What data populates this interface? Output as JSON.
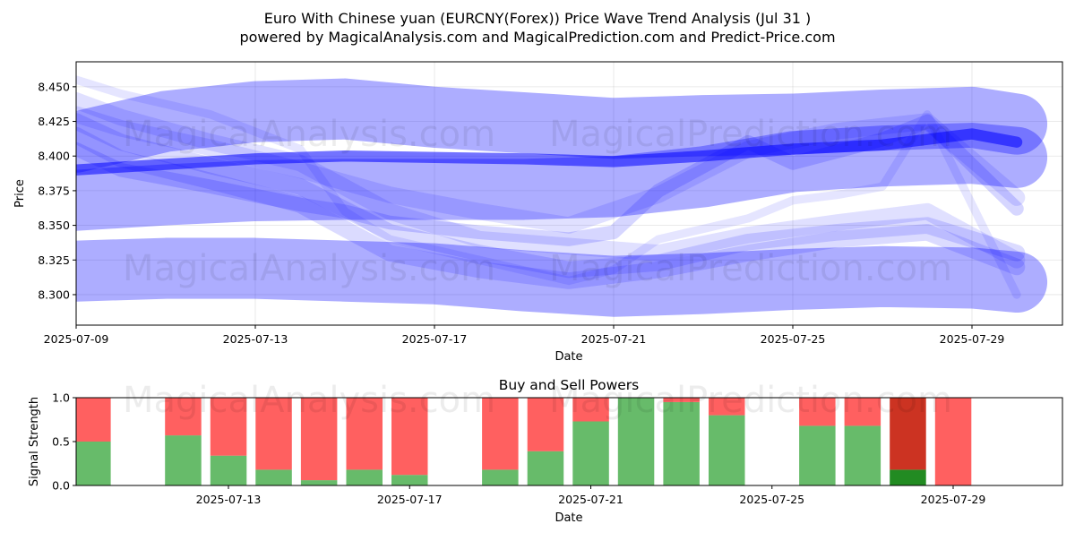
{
  "figure": {
    "title_line1": "Euro With Chinese yuan (EURCNY(Forex)) Price Wave Trend Analysis (Jul 31 )",
    "title_line2": "powered by MagicalAnalysis.com and MagicalPrediction.com and Predict-Price.com",
    "watermark_left": "MagicalAnalysis.com",
    "watermark_right": "MagicalPrediction.com"
  },
  "colors": {
    "band": "#0000ff",
    "buy": "#4caf50",
    "sell": "#ff4444",
    "buy_dark": "#228b22",
    "sell_dark": "#cc3322"
  },
  "chart_data": [
    {
      "type": "area",
      "title": "",
      "xlabel": "Date",
      "ylabel": "Price",
      "x_range": [
        "2025-07-09",
        "2025-07-31"
      ],
      "ylim": [
        8.278,
        8.468
      ],
      "x_ticks": [
        "2025-07-09",
        "2025-07-13",
        "2025-07-17",
        "2025-07-21",
        "2025-07-25",
        "2025-07-29"
      ],
      "y_ticks": [
        8.3,
        8.325,
        8.35,
        8.375,
        8.4,
        8.425,
        8.45
      ],
      "grid": true,
      "series": [
        {
          "x": [
            "2025-07-09",
            "2025-07-11",
            "2025-07-13",
            "2025-07-15",
            "2025-07-17",
            "2025-07-19",
            "2025-07-21",
            "2025-07-23",
            "2025-07-25",
            "2025-07-27",
            "2025-07-29",
            "2025-07-30"
          ],
          "y": [
            8.41,
            8.425,
            8.432,
            8.434,
            8.428,
            8.424,
            8.42,
            8.422,
            8.423,
            8.426,
            8.428,
            8.423
          ],
          "width": 8.044
        },
        {
          "x": [
            "2025-07-09",
            "2025-07-11",
            "2025-07-13",
            "2025-07-15",
            "2025-07-17",
            "2025-07-19",
            "2025-07-21",
            "2025-07-23",
            "2025-07-25",
            "2025-07-27",
            "2025-07-29",
            "2025-07-30"
          ],
          "y": [
            8.368,
            8.372,
            8.375,
            8.376,
            8.376,
            8.376,
            8.378,
            8.385,
            8.396,
            8.4,
            8.402,
            8.399
          ],
          "width": 8.044
        },
        {
          "x": [
            "2025-07-09",
            "2025-07-11",
            "2025-07-13",
            "2025-07-15",
            "2025-07-17",
            "2025-07-19",
            "2025-07-21",
            "2025-07-23",
            "2025-07-25",
            "2025-07-27",
            "2025-07-29",
            "2025-07-30"
          ],
          "y": [
            8.317,
            8.319,
            8.319,
            8.317,
            8.315,
            8.31,
            8.306,
            8.308,
            8.311,
            8.313,
            8.312,
            8.309
          ],
          "width": 8.044
        },
        {
          "x": [
            "2025-07-09",
            "2025-07-11",
            "2025-07-13",
            "2025-07-15",
            "2025-07-17",
            "2025-07-19",
            "2025-07-21",
            "2025-07-23",
            "2025-07-25",
            "2025-07-27",
            "2025-07-29",
            "2025-07-30"
          ],
          "y": [
            8.39,
            8.394,
            8.398,
            8.4,
            8.399,
            8.398,
            8.396,
            8.4,
            8.405,
            8.408,
            8.416,
            8.41
          ],
          "width": 8.008
        },
        {
          "x": [
            "2025-07-09",
            "2025-07-10",
            "2025-07-12",
            "2025-07-14",
            "2025-07-16",
            "2025-07-18",
            "2025-07-20",
            "2025-07-22",
            "2025-07-24",
            "2025-07-26",
            "2025-07-28",
            "2025-07-30"
          ],
          "y": [
            8.43,
            8.42,
            8.406,
            8.39,
            8.372,
            8.36,
            8.35,
            8.372,
            8.405,
            8.418,
            8.425,
            8.37
          ],
          "width": 8.012
        },
        {
          "x": [
            "2025-07-09",
            "2025-07-10",
            "2025-07-12",
            "2025-07-14",
            "2025-07-16",
            "2025-07-18",
            "2025-07-20",
            "2025-07-22",
            "2025-07-24",
            "2025-07-26",
            "2025-07-28",
            "2025-07-30"
          ],
          "y": [
            8.44,
            8.428,
            8.41,
            8.395,
            8.36,
            8.34,
            8.335,
            8.33,
            8.343,
            8.352,
            8.36,
            8.325
          ],
          "width": 8.012
        },
        {
          "x": [
            "2025-07-09",
            "2025-07-10",
            "2025-07-12",
            "2025-07-14",
            "2025-07-16",
            "2025-07-18",
            "2025-07-20",
            "2025-07-22",
            "2025-07-24",
            "2025-07-26",
            "2025-07-28",
            "2025-07-30"
          ],
          "y": [
            8.425,
            8.41,
            8.393,
            8.378,
            8.345,
            8.33,
            8.318,
            8.323,
            8.338,
            8.345,
            8.35,
            8.33
          ],
          "width": 8.012
        },
        {
          "x": [
            "2025-07-09",
            "2025-07-10",
            "2025-07-12",
            "2025-07-14",
            "2025-07-16",
            "2025-07-18",
            "2025-07-20",
            "2025-07-22",
            "2025-07-24",
            "2025-07-26",
            "2025-07-28",
            "2025-07-30"
          ],
          "y": [
            8.415,
            8.398,
            8.382,
            8.365,
            8.33,
            8.318,
            8.31,
            8.318,
            8.33,
            8.34,
            8.345,
            8.32
          ],
          "width": 8.012
        },
        {
          "x": [
            "2025-07-09",
            "2025-07-10",
            "2025-07-12",
            "2025-07-14",
            "2025-07-15",
            "2025-07-16",
            "2025-07-18",
            "2025-07-20",
            "2025-07-21",
            "2025-07-22",
            "2025-07-24",
            "2025-07-25",
            "2025-07-27",
            "2025-07-28",
            "2025-07-30"
          ],
          "y": [
            8.405,
            8.39,
            8.378,
            8.365,
            8.36,
            8.352,
            8.345,
            8.34,
            8.345,
            8.375,
            8.41,
            8.395,
            8.412,
            8.425,
            8.362
          ],
          "width": 8.01
        },
        {
          "x": [
            "2025-07-09",
            "2025-07-10",
            "2025-07-12",
            "2025-07-14",
            "2025-07-15",
            "2025-07-16",
            "2025-07-18",
            "2025-07-20",
            "2025-07-21",
            "2025-07-22",
            "2025-07-24",
            "2025-07-25",
            "2025-07-26",
            "2025-07-27",
            "2025-07-28",
            "2025-07-30"
          ],
          "y": [
            8.455,
            8.445,
            8.43,
            8.405,
            8.36,
            8.34,
            8.325,
            8.31,
            8.318,
            8.34,
            8.355,
            8.368,
            8.372,
            8.378,
            8.43,
            8.3
          ],
          "width": 8.006
        }
      ]
    },
    {
      "type": "bar",
      "title": "Buy and Sell Powers",
      "xlabel": "Date",
      "ylabel": "Signal Strength",
      "ylim": [
        0,
        1.0
      ],
      "y_ticks": [
        "0.0",
        "0.5",
        "1.0"
      ],
      "x_ticks": [
        "2025-07-13",
        "2025-07-17",
        "2025-07-21",
        "2025-07-25",
        "2025-07-29"
      ],
      "categories": [
        "2025-07-10",
        "2025-07-12",
        "2025-07-13",
        "2025-07-14",
        "2025-07-15",
        "2025-07-16",
        "2025-07-17",
        "2025-07-19",
        "2025-07-20",
        "2025-07-21",
        "2025-07-22",
        "2025-07-23",
        "2025-07-24",
        "2025-07-26",
        "2025-07-27",
        "2025-07-28",
        "2025-07-29"
      ],
      "series": [
        {
          "values": [
            0.5,
            0.57,
            0.34,
            0.18,
            0.06,
            0.18,
            0.12,
            0.18,
            0.39,
            0.73,
            1.0,
            0.95,
            0.8,
            0.68,
            0.68,
            0.18,
            0.0
          ]
        },
        {
          "values": [
            0.5,
            0.43,
            0.66,
            0.82,
            0.94,
            0.82,
            0.88,
            0.82,
            0.61,
            0.27,
            0.0,
            0.05,
            0.2,
            0.32,
            0.32,
            0.82,
            1.0
          ]
        }
      ],
      "highlight_category": "2025-07-28"
    }
  ]
}
